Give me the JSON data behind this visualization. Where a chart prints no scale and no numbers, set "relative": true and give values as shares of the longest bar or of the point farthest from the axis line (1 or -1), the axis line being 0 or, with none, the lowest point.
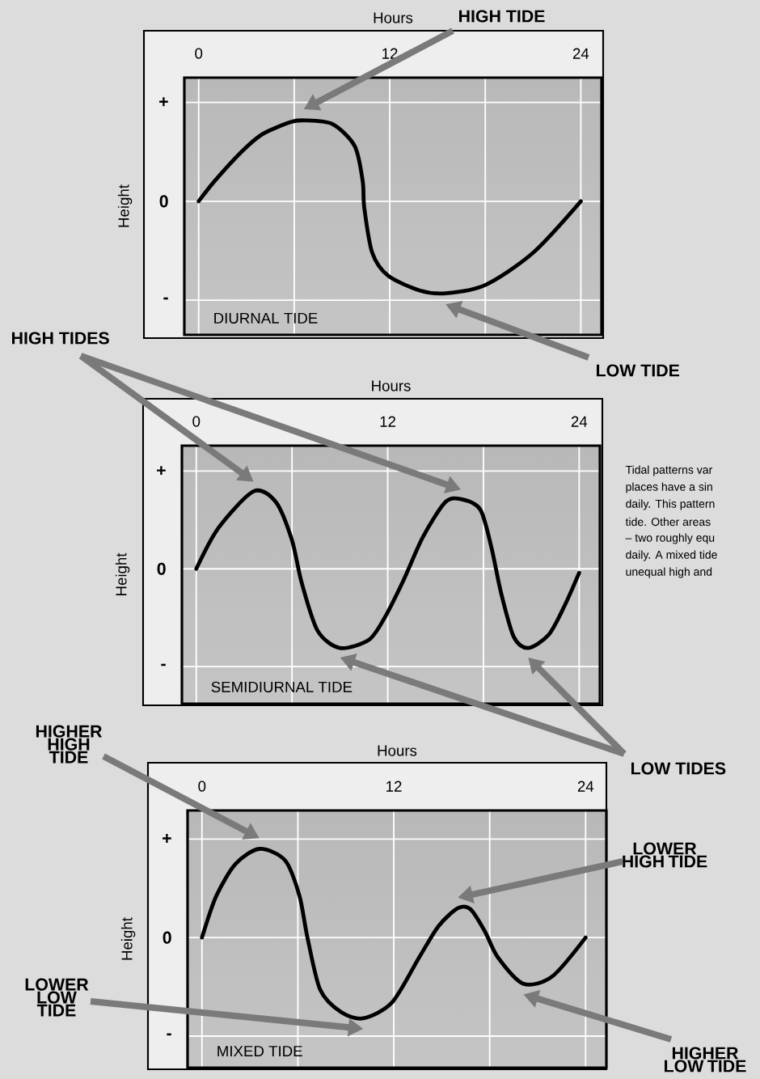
{
  "chart_data": [
    {
      "type": "line",
      "relative": true,
      "title": "DIURNAL TIDE",
      "xlabel": "Hours",
      "ylabel": "Height",
      "color": "#000000",
      "grid": true,
      "x": [
        0,
        1,
        2.7,
        4,
        5.75,
        6.6,
        8.4,
        9.8,
        10.3,
        10.4,
        10.9,
        11.9,
        13.9,
        15.5,
        18,
        21,
        24
      ],
      "values": [
        0,
        0.22,
        0.54,
        0.73,
        0.86,
        0.88,
        0.84,
        0.6,
        0.22,
        -0.07,
        -0.56,
        -0.81,
        -0.97,
        -1,
        -0.91,
        -0.56,
        0
      ],
      "xlim": [
        -0.9,
        25.3
      ],
      "xticks": [
        0,
        12,
        24
      ],
      "annotations": [
        "HIGH TIDE",
        "LOW TIDE",
        "+",
        "0",
        "-"
      ]
    },
    {
      "type": "line",
      "relative": true,
      "title": "SEMIDIURNAL TIDE",
      "xlabel": "Hours",
      "ylabel": "Height",
      "color": "#000000",
      "grid": true,
      "x": [
        0,
        1.4,
        3.6,
        5,
        6,
        6.6,
        7.6,
        9,
        10.8,
        11.8,
        13,
        14.2,
        15.6,
        16.6,
        17.8,
        18.5,
        19.1,
        19.9,
        20.8,
        22.1,
        23.1,
        24
      ],
      "values": [
        0,
        0.52,
        0.98,
        0.84,
        0.36,
        -0.17,
        -0.78,
        -1,
        -0.9,
        -0.62,
        -0.14,
        0.4,
        0.84,
        0.88,
        0.75,
        0.27,
        -0.3,
        -0.86,
        -1,
        -0.83,
        -0.46,
        -0.05
      ],
      "xlim": [
        -0.9,
        25.3
      ],
      "xticks": [
        0,
        12,
        24
      ],
      "annotations": [
        "HIGH TIDES",
        "LOW TIDES",
        "Tidal patterns var",
        "places have a sin",
        "daily. This pattern",
        "tide. Other areas",
        "– two roughly equ",
        "daily. A mixed tide",
        "unequal high and",
        "+",
        "0",
        "-"
      ]
    },
    {
      "type": "line",
      "relative": true,
      "title": "MIXED TIDE",
      "xlabel": "Hours",
      "ylabel": "Height",
      "color": "#000000",
      "grid": true,
      "x": [
        0,
        0.9,
        2.1,
        3.6,
        5.2,
        6.1,
        6.6,
        7.4,
        8.7,
        10.1,
        11.9,
        13.6,
        14.8,
        16,
        16.8,
        17.7,
        18.5,
        20.1,
        21.9,
        24
      ],
      "values": [
        0,
        0.47,
        0.83,
        1,
        0.87,
        0.47,
        0,
        -0.59,
        -0.84,
        -0.91,
        -0.73,
        -0.22,
        0.13,
        0.33,
        0.32,
        0.07,
        -0.22,
        -0.52,
        -0.44,
        0
      ],
      "xlim": [
        -0.9,
        25.3
      ],
      "xticks": [
        0,
        12,
        24
      ],
      "annotations": [
        "HIGHER HIGH TIDE",
        "LOWER HIGH TIDE",
        "LOWER LOW TIDE",
        "HIGHER LOW TIDE",
        "+",
        "0",
        "-"
      ]
    }
  ]
}
